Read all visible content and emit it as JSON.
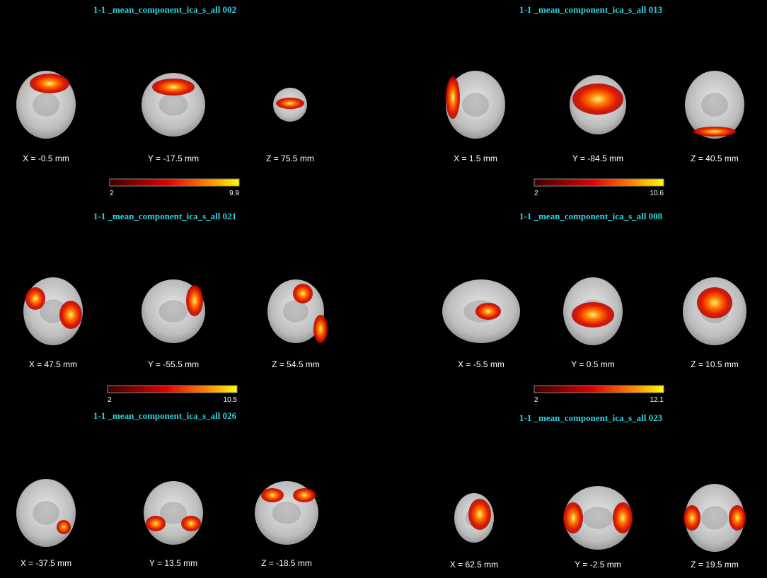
{
  "panels": [
    {
      "title": "1-1 _mean_component_ica_s_all 002",
      "slices": [
        "X = -0.5 mm",
        "Y = -17.5 mm",
        "Z = 75.5 mm"
      ],
      "colorbar": {
        "min": "2",
        "max": "9.9"
      }
    },
    {
      "title": "1-1 _mean_component_ica_s_all 013",
      "slices": [
        "X = 1.5 mm",
        "Y = -84.5 mm",
        "Z = 40.5 mm"
      ],
      "colorbar": {
        "min": "2",
        "max": "10.6"
      }
    },
    {
      "title": "1-1 _mean_component_ica_s_all 021",
      "slices": [
        "X = 47.5 mm",
        "Y = -55.5 mm",
        "Z = 54.5 mm"
      ],
      "colorbar": {
        "min": "2",
        "max": "10.5"
      }
    },
    {
      "title": "1-1 _mean_component_ica_s_all 008",
      "slices": [
        "X = -5.5 mm",
        "Y = 0.5 mm",
        "Z = 10.5 mm"
      ],
      "colorbar": {
        "min": "2",
        "max": "12.1"
      }
    },
    {
      "title": "1-1 _mean_component_ica_s_all 026",
      "slices": [
        "X = -37.5 mm",
        "Y = 13.5 mm",
        "Z = -18.5 mm"
      ]
    },
    {
      "title": "1-1 _mean_component_ica_s_all 023",
      "slices": [
        "X = 62.5 mm",
        "Y = -2.5 mm",
        "Z = 19.5 mm"
      ]
    }
  ]
}
